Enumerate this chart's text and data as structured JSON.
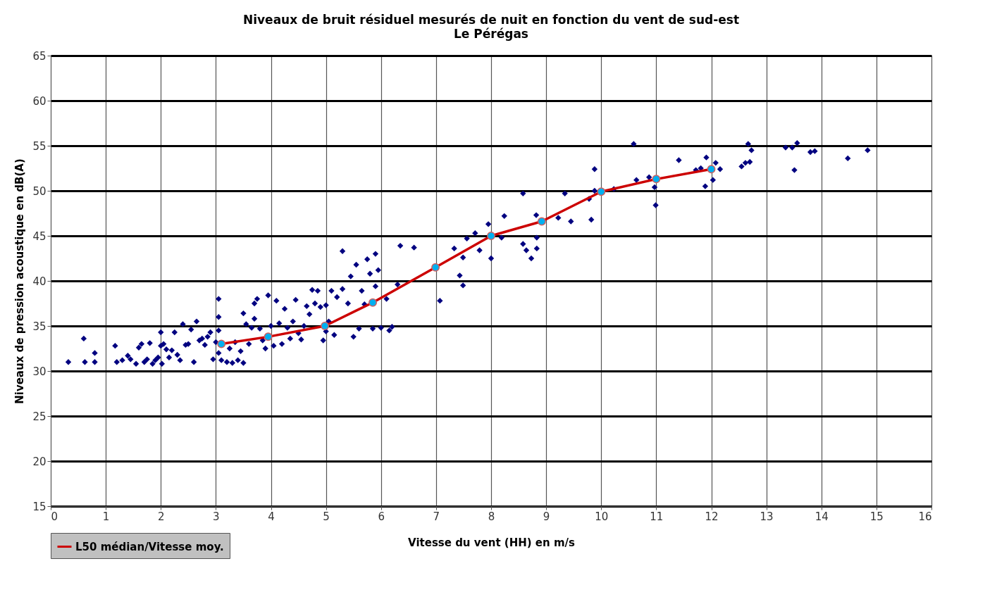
{
  "chart_data": {
    "type": "scatter",
    "title": "Niveaux de bruit  résiduel mesurés de nuit en fonction du vent de sud-est",
    "subtitle": "Le Pérégas",
    "xlabel": "Vitesse du vent (HH) en m/s",
    "ylabel": "Niveaux de pression acoustique en dB(A)",
    "xlim": [
      0,
      16
    ],
    "ylim": [
      15,
      65
    ],
    "xticks": [
      0,
      1,
      2,
      3,
      4,
      5,
      6,
      7,
      8,
      9,
      10,
      11,
      12,
      13,
      14,
      15,
      16
    ],
    "yticks": [
      15,
      20,
      25,
      30,
      35,
      40,
      45,
      50,
      55,
      60,
      65
    ],
    "grid": true,
    "legend": "bottom left",
    "series": [
      {
        "color": "#000080",
        "marker": "diamond",
        "x": [
          0.32,
          0.6,
          0.62,
          0.8,
          0.8,
          1.17,
          1.2,
          1.3,
          1.4,
          1.45,
          1.55,
          1.6,
          1.65,
          1.7,
          1.75,
          1.8,
          1.85,
          1.9,
          1.95,
          2.0,
          2.0,
          2.02,
          2.05,
          2.1,
          2.15,
          2.2,
          2.25,
          2.3,
          2.35,
          2.4,
          2.45,
          2.5,
          2.55,
          2.6,
          2.65,
          2.7,
          2.75,
          2.8,
          2.85,
          2.9,
          2.95,
          3.0,
          3.05,
          3.05,
          3.05,
          3.05,
          3.1,
          3.2,
          3.25,
          3.3,
          3.35,
          3.4,
          3.45,
          3.5,
          3.5,
          3.55,
          3.6,
          3.65,
          3.7,
          3.7,
          3.75,
          3.8,
          3.85,
          3.9,
          3.95,
          4.0,
          4.05,
          4.1,
          4.15,
          4.2,
          4.25,
          4.3,
          4.35,
          4.4,
          4.45,
          4.5,
          4.55,
          4.6,
          4.65,
          4.7,
          4.75,
          4.8,
          4.85,
          4.9,
          4.95,
          5.0,
          5.0,
          5.05,
          5.1,
          5.15,
          5.2,
          5.3,
          5.3,
          5.4,
          5.45,
          5.5,
          5.55,
          5.6,
          5.65,
          5.7,
          5.75,
          5.8,
          5.85,
          5.9,
          5.9,
          5.95,
          6.0,
          6.1,
          6.15,
          6.2,
          6.3,
          6.35,
          6.6,
          7.07,
          7.33,
          7.43,
          7.49,
          7.49,
          7.56,
          7.71,
          7.79,
          7.95,
          8.0,
          8.19,
          8.24,
          8.58,
          8.58,
          8.64,
          8.73,
          8.82,
          8.83,
          8.83,
          9.22,
          9.34,
          9.45,
          9.78,
          9.82,
          9.88,
          9.88,
          10.23,
          10.59,
          10.64,
          10.87,
          10.97,
          10.99,
          11.41,
          11.72,
          11.81,
          11.91,
          12.08,
          12.16,
          12.03,
          11.89,
          12.55,
          12.62,
          12.7,
          12.67,
          12.73,
          13.35,
          13.47,
          13.56,
          13.51,
          13.8,
          13.88,
          14.48,
          14.84
        ],
        "values": [
          31,
          33.6,
          31,
          32,
          31,
          32.8,
          31,
          31.2,
          31.7,
          31.3,
          30.8,
          32.6,
          33,
          31,
          31.3,
          33.1,
          30.8,
          31.2,
          31.5,
          34.3,
          32.8,
          30.8,
          33,
          32.4,
          31.5,
          32.3,
          34.3,
          31.8,
          31.2,
          35.2,
          32.9,
          33,
          34.6,
          31,
          35.5,
          33.4,
          33.6,
          32.9,
          33.8,
          34.3,
          31.3,
          33.2,
          38,
          36,
          34.5,
          32,
          31.2,
          31,
          32.5,
          30.9,
          33.2,
          31.2,
          32.2,
          36.4,
          30.9,
          35.2,
          33,
          34.8,
          37.5,
          35.8,
          38,
          34.7,
          33.4,
          32.5,
          38.4,
          35,
          32.8,
          37.8,
          35.3,
          33,
          36.9,
          34.8,
          33.6,
          35.5,
          37.9,
          34.2,
          33.5,
          35,
          37.2,
          36.3,
          39,
          37.5,
          38.9,
          37.1,
          33.4,
          34.4,
          37.3,
          35.5,
          38.9,
          34,
          38.2,
          43.3,
          39.1,
          37.5,
          40.5,
          33.8,
          41.8,
          34.7,
          38.9,
          37.4,
          42.4,
          40.8,
          34.7,
          43,
          39.4,
          41.2,
          34.8,
          38,
          34.5,
          34.9,
          39.6,
          43.9,
          43.7,
          37.8,
          43.6,
          40.6,
          39.5,
          42.6,
          44.7,
          45.3,
          43.4,
          46.3,
          42.5,
          44.8,
          47.2,
          49.7,
          44.1,
          43.4,
          42.5,
          47.3,
          44.8,
          43.6,
          47,
          49.7,
          46.6,
          49.1,
          46.8,
          52.4,
          50,
          50.2,
          55.2,
          51.2,
          51.5,
          50.4,
          48.4,
          53.4,
          52.3,
          52.5,
          53.7,
          53.1,
          52.4,
          51.2,
          50.5,
          52.7,
          53.1,
          53.2,
          55.2,
          54.5,
          54.8,
          54.8,
          55.3,
          52.3,
          54.3,
          54.4,
          53.6,
          54.5
        ]
      },
      {
        "type": "line",
        "name": "L50 médian/Vitesse moy.",
        "color": "#cc0000",
        "marker": "circle",
        "x": [
          3.1,
          3.95,
          4.98,
          5.85,
          6.99,
          8,
          8.92,
          10,
          11,
          12
        ],
        "values": [
          33,
          33.8,
          35,
          37.6,
          41.5,
          45,
          46.6,
          49.9,
          51.3,
          52.4
        ]
      }
    ]
  }
}
